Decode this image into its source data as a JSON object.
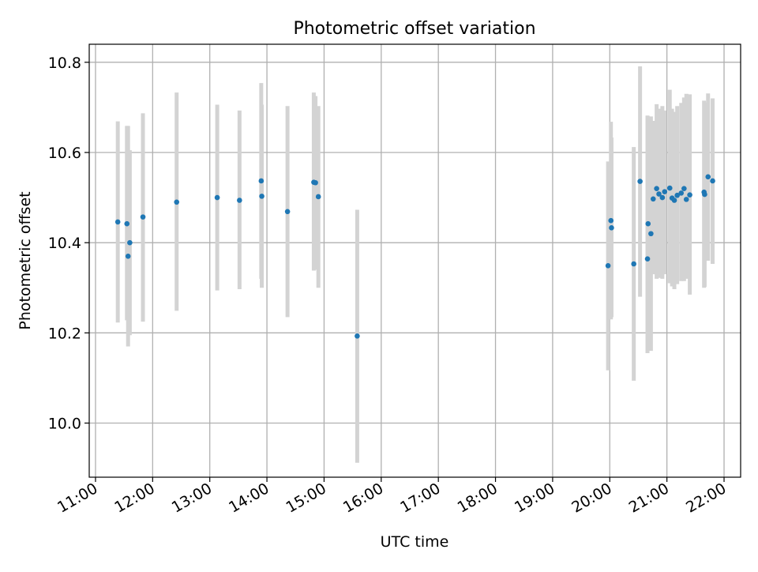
{
  "chart_data": {
    "type": "scatter",
    "title": "Photometric offset variation",
    "xlabel": "UTC time",
    "ylabel": "Photometric offset",
    "x_unit": "UTC hour",
    "xlim": [
      10.89,
      22.29
    ],
    "ylim": [
      9.88,
      10.84
    ],
    "grid": true,
    "x_ticks": [
      {
        "value": 11,
        "label": "11:00"
      },
      {
        "value": 12,
        "label": "12:00"
      },
      {
        "value": 13,
        "label": "13:00"
      },
      {
        "value": 14,
        "label": "14:00"
      },
      {
        "value": 15,
        "label": "15:00"
      },
      {
        "value": 16,
        "label": "16:00"
      },
      {
        "value": 17,
        "label": "17:00"
      },
      {
        "value": 18,
        "label": "18:00"
      },
      {
        "value": 19,
        "label": "19:00"
      },
      {
        "value": 20,
        "label": "20:00"
      },
      {
        "value": 21,
        "label": "21:00"
      },
      {
        "value": 22,
        "label": "22:00"
      }
    ],
    "y_ticks": [
      {
        "value": 10.0,
        "label": "10.0"
      },
      {
        "value": 10.2,
        "label": "10.2"
      },
      {
        "value": 10.4,
        "label": "10.4"
      },
      {
        "value": 10.6,
        "label": "10.6"
      },
      {
        "value": 10.8,
        "label": "10.8"
      }
    ],
    "marker_color": "#1f77b4",
    "errorbar_color": "#d3d3d3",
    "points": [
      {
        "x": 11.39,
        "y": 10.446,
        "lo": 10.223,
        "hi": 10.669
      },
      {
        "x": 11.55,
        "y": 10.442,
        "lo": 10.228,
        "hi": 10.659
      },
      {
        "x": 11.57,
        "y": 10.37,
        "lo": 10.17,
        "hi": 10.659
      },
      {
        "x": 11.6,
        "y": 10.4,
        "lo": 10.195,
        "hi": 10.605
      },
      {
        "x": 11.83,
        "y": 10.457,
        "lo": 10.225,
        "hi": 10.687
      },
      {
        "x": 12.42,
        "y": 10.49,
        "lo": 10.249,
        "hi": 10.733
      },
      {
        "x": 13.13,
        "y": 10.5,
        "lo": 10.294,
        "hi": 10.706
      },
      {
        "x": 13.52,
        "y": 10.494,
        "lo": 10.297,
        "hi": 10.693
      },
      {
        "x": 13.9,
        "y": 10.537,
        "lo": 10.32,
        "hi": 10.754
      },
      {
        "x": 13.91,
        "y": 10.503,
        "lo": 10.3,
        "hi": 10.706
      },
      {
        "x": 14.36,
        "y": 10.469,
        "lo": 10.235,
        "hi": 10.703
      },
      {
        "x": 14.82,
        "y": 10.534,
        "lo": 10.338,
        "hi": 10.733
      },
      {
        "x": 14.85,
        "y": 10.533,
        "lo": 10.34,
        "hi": 10.725
      },
      {
        "x": 14.9,
        "y": 10.502,
        "lo": 10.3,
        "hi": 10.703
      },
      {
        "x": 15.58,
        "y": 10.193,
        "lo": 9.912,
        "hi": 10.473
      },
      {
        "x": 19.97,
        "y": 10.349,
        "lo": 10.117,
        "hi": 10.58
      },
      {
        "x": 20.02,
        "y": 10.449,
        "lo": 10.23,
        "hi": 10.668
      },
      {
        "x": 20.03,
        "y": 10.433,
        "lo": 10.235,
        "hi": 10.633
      },
      {
        "x": 20.42,
        "y": 10.353,
        "lo": 10.094,
        "hi": 10.612
      },
      {
        "x": 20.53,
        "y": 10.536,
        "lo": 10.28,
        "hi": 10.791
      },
      {
        "x": 20.66,
        "y": 10.364,
        "lo": 10.155,
        "hi": 10.682
      },
      {
        "x": 20.67,
        "y": 10.442,
        "lo": 10.2,
        "hi": 10.68
      },
      {
        "x": 20.72,
        "y": 10.42,
        "lo": 10.16,
        "hi": 10.68
      },
      {
        "x": 20.76,
        "y": 10.497,
        "lo": 10.33,
        "hi": 10.67
      },
      {
        "x": 20.82,
        "y": 10.52,
        "lo": 10.32,
        "hi": 10.707
      },
      {
        "x": 20.86,
        "y": 10.508,
        "lo": 10.322,
        "hi": 10.697
      },
      {
        "x": 20.92,
        "y": 10.5,
        "lo": 10.32,
        "hi": 10.703
      },
      {
        "x": 20.96,
        "y": 10.513,
        "lo": 10.33,
        "hi": 10.693
      },
      {
        "x": 21.05,
        "y": 10.521,
        "lo": 10.31,
        "hi": 10.739
      },
      {
        "x": 21.09,
        "y": 10.499,
        "lo": 10.303,
        "hi": 10.697
      },
      {
        "x": 21.13,
        "y": 10.494,
        "lo": 10.297,
        "hi": 10.69
      },
      {
        "x": 21.18,
        "y": 10.505,
        "lo": 10.308,
        "hi": 10.703
      },
      {
        "x": 21.25,
        "y": 10.51,
        "lo": 10.315,
        "hi": 10.71
      },
      {
        "x": 21.3,
        "y": 10.52,
        "lo": 10.315,
        "hi": 10.722
      },
      {
        "x": 21.34,
        "y": 10.496,
        "lo": 10.32,
        "hi": 10.73
      },
      {
        "x": 21.4,
        "y": 10.506,
        "lo": 10.285,
        "hi": 10.729
      },
      {
        "x": 21.65,
        "y": 10.512,
        "lo": 10.3,
        "hi": 10.715
      },
      {
        "x": 21.66,
        "y": 10.507,
        "lo": 10.302,
        "hi": 10.711
      },
      {
        "x": 21.72,
        "y": 10.546,
        "lo": 10.36,
        "hi": 10.731
      },
      {
        "x": 21.8,
        "y": 10.537,
        "lo": 10.353,
        "hi": 10.72
      }
    ]
  }
}
